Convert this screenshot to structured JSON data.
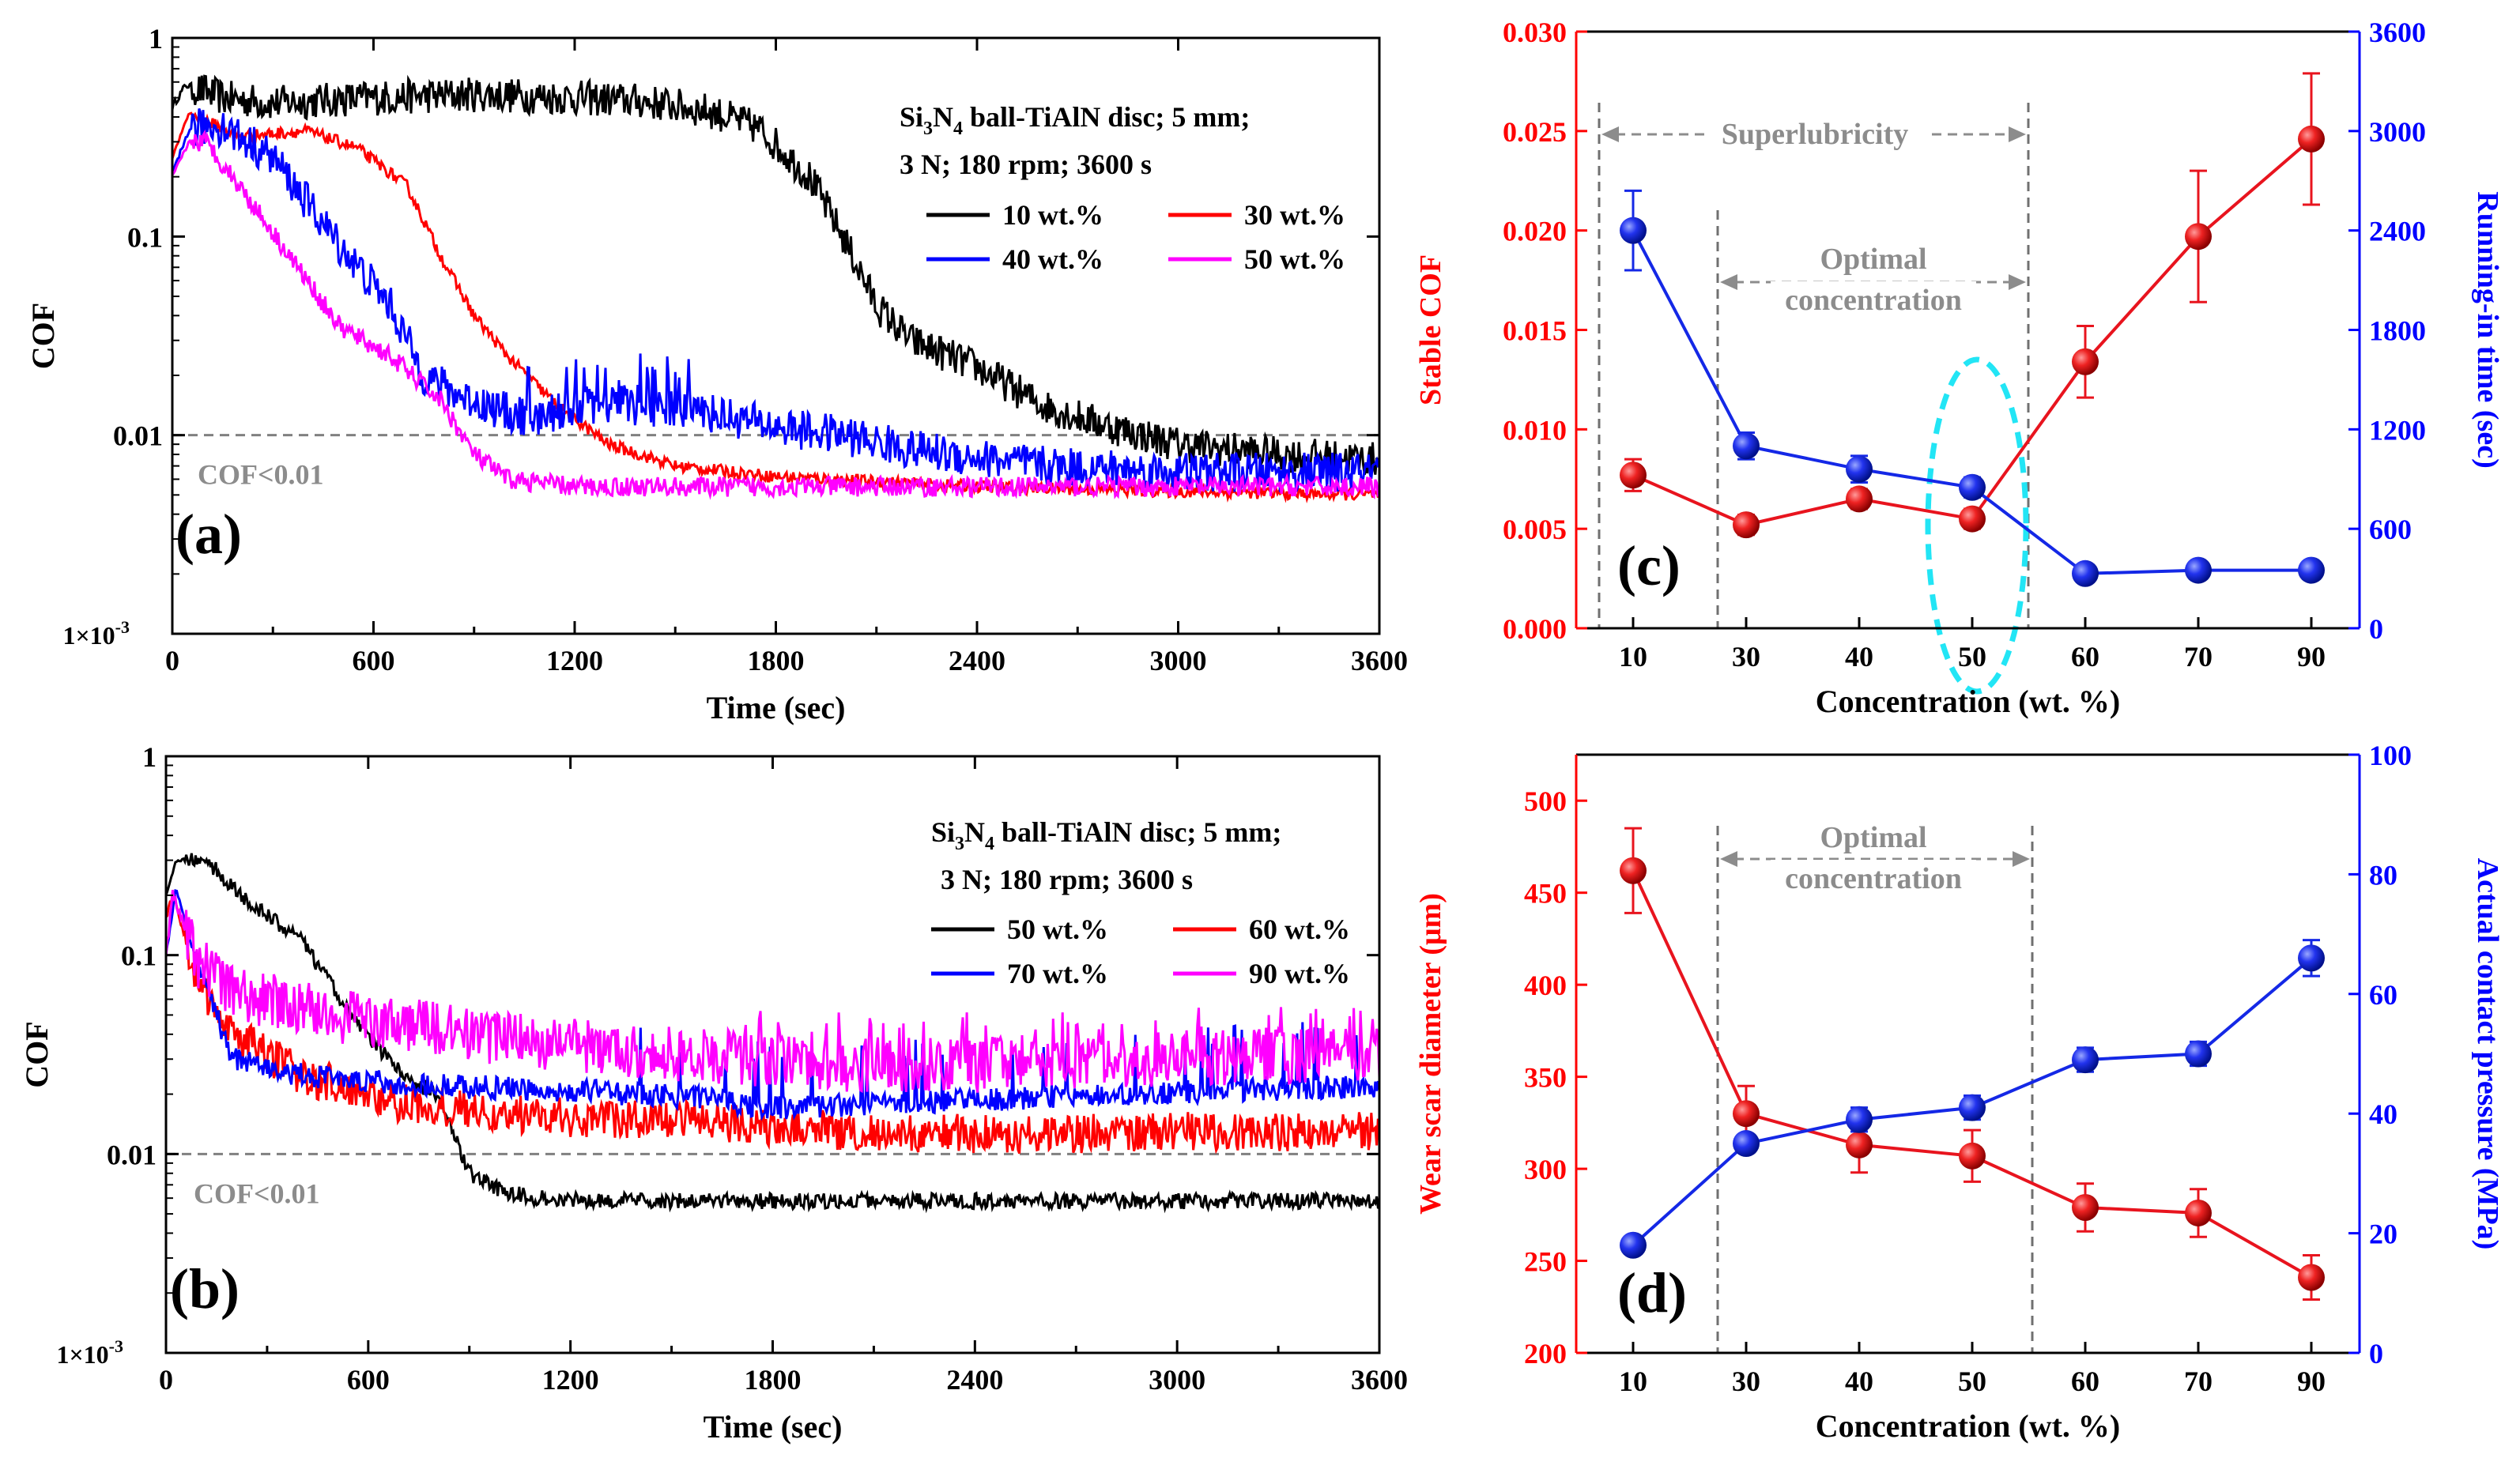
{
  "chart_data": [
    {
      "panel": "a",
      "type": "line",
      "panel_label": "(a)",
      "xlabel": "Time (sec)",
      "ylabel": "COF",
      "xlim": [
        0,
        3600
      ],
      "ylim": [
        0.001,
        1
      ],
      "yscale": "log",
      "xticks": [
        0,
        600,
        1200,
        1800,
        2400,
        3000,
        3600
      ],
      "xtick_labels": [
        "0",
        "600",
        "1200",
        "1800",
        "2400",
        "3000",
        "3600"
      ],
      "yticks": [
        1,
        0.1,
        0.01,
        0.001
      ],
      "ytick_labels": [
        "1",
        "0.1",
        "0.01",
        "1×10-3"
      ],
      "annotation": {
        "line1_pre": "Si",
        "line1_sub1": "3",
        "line1_mid": "N",
        "line1_sub2": "4",
        "line1_post": " ball-TiAlN disc; 5 mm;",
        "line2": "3 N; 180 rpm; 3600 s"
      },
      "threshold": {
        "value": 0.01,
        "label": "COF<0.01"
      },
      "series": [
        {
          "name": "10 wt.%",
          "color": "#000000",
          "noise": 0.18,
          "points": [
            [
              0,
              0.45
            ],
            [
              40,
              0.58
            ],
            [
              150,
              0.5
            ],
            [
              300,
              0.47
            ],
            [
              600,
              0.5
            ],
            [
              900,
              0.52
            ],
            [
              1200,
              0.5
            ],
            [
              1400,
              0.48
            ],
            [
              1600,
              0.43
            ],
            [
              1750,
              0.35
            ],
            [
              1900,
              0.2
            ],
            [
              2000,
              0.1
            ],
            [
              2100,
              0.045
            ],
            [
              2200,
              0.03
            ],
            [
              2400,
              0.022
            ],
            [
              2600,
              0.014
            ],
            [
              2800,
              0.011
            ],
            [
              3000,
              0.009
            ],
            [
              3300,
              0.008
            ],
            [
              3600,
              0.0075
            ]
          ]
        },
        {
          "name": "30 wt.%",
          "color": "#ff0000",
          "noise": 0.06,
          "points": [
            [
              0,
              0.25
            ],
            [
              50,
              0.42
            ],
            [
              200,
              0.32
            ],
            [
              400,
              0.34
            ],
            [
              550,
              0.28
            ],
            [
              700,
              0.18
            ],
            [
              800,
              0.08
            ],
            [
              900,
              0.04
            ],
            [
              1000,
              0.025
            ],
            [
              1150,
              0.014
            ],
            [
              1300,
              0.009
            ],
            [
              1500,
              0.007
            ],
            [
              1800,
              0.0062
            ],
            [
              2400,
              0.0055
            ],
            [
              3000,
              0.0052
            ],
            [
              3600,
              0.005
            ]
          ]
        },
        {
          "name": "40 wt.%",
          "color": "#0000ff",
          "noise": 0.2,
          "points": [
            [
              0,
              0.2
            ],
            [
              50,
              0.35
            ],
            [
              150,
              0.36
            ],
            [
              300,
              0.25
            ],
            [
              500,
              0.09
            ],
            [
              650,
              0.045
            ],
            [
              750,
              0.02
            ],
            [
              850,
              0.016
            ],
            [
              1000,
              0.013
            ],
            [
              1100,
              0.012
            ],
            [
              1200,
              0.014
            ],
            [
              1400,
              0.014
            ],
            [
              1600,
              0.013
            ],
            [
              1800,
              0.011
            ],
            [
              2000,
              0.01
            ],
            [
              2200,
              0.0085
            ],
            [
              2600,
              0.007
            ],
            [
              3000,
              0.0065
            ],
            [
              3600,
              0.0065
            ]
          ]
        },
        {
          "name": "50 wt.%",
          "color": "#ff00ff",
          "noise": 0.1,
          "points": [
            [
              0,
              0.2
            ],
            [
              50,
              0.3
            ],
            [
              100,
              0.3
            ],
            [
              200,
              0.18
            ],
            [
              350,
              0.08
            ],
            [
              500,
              0.035
            ],
            [
              650,
              0.025
            ],
            [
              800,
              0.015
            ],
            [
              900,
              0.008
            ],
            [
              1000,
              0.006
            ],
            [
              1200,
              0.0055
            ],
            [
              3600,
              0.0055
            ]
          ]
        }
      ]
    },
    {
      "panel": "b",
      "type": "line",
      "panel_label": "(b)",
      "xlabel": "Time (sec)",
      "ylabel": "COF",
      "xlim": [
        0,
        3600
      ],
      "ylim": [
        0.001,
        1
      ],
      "yscale": "log",
      "xticks": [
        0,
        600,
        1200,
        1800,
        2400,
        3000,
        3600
      ],
      "xtick_labels": [
        "0",
        "600",
        "1200",
        "1800",
        "2400",
        "3000",
        "3600"
      ],
      "yticks": [
        1,
        0.1,
        0.01,
        0.001
      ],
      "ytick_labels": [
        "1",
        "0.1",
        "0.01",
        "1×10-3"
      ],
      "annotation": {
        "line1_pre": "Si",
        "line1_sub1": "3",
        "line1_mid": "N",
        "line1_sub2": "4",
        "line1_post": " ball-TiAlN disc; 5 mm;",
        "line2": "3 N; 180 rpm; 3600 s"
      },
      "threshold": {
        "value": 0.01,
        "label": "COF<0.01"
      },
      "series": [
        {
          "name": "50 wt.%",
          "color": "#000000",
          "noise": 0.08,
          "points": [
            [
              0,
              0.2
            ],
            [
              30,
              0.3
            ],
            [
              120,
              0.3
            ],
            [
              250,
              0.18
            ],
            [
              400,
              0.12
            ],
            [
              550,
              0.05
            ],
            [
              700,
              0.025
            ],
            [
              800,
              0.02
            ],
            [
              850,
              0.013
            ],
            [
              900,
              0.008
            ],
            [
              1000,
              0.0065
            ],
            [
              1100,
              0.006
            ],
            [
              1400,
              0.0058
            ],
            [
              3600,
              0.0058
            ]
          ]
        },
        {
          "name": "60 wt.%",
          "color": "#ff0000",
          "noise": 0.2,
          "points": [
            [
              0,
              0.15
            ],
            [
              20,
              0.2
            ],
            [
              100,
              0.07
            ],
            [
              200,
              0.04
            ],
            [
              400,
              0.025
            ],
            [
              700,
              0.018
            ],
            [
              1000,
              0.016
            ],
            [
              1300,
              0.015
            ],
            [
              1600,
              0.0145
            ],
            [
              2000,
              0.013
            ],
            [
              2600,
              0.0125
            ],
            [
              3000,
              0.013
            ],
            [
              3600,
              0.013
            ]
          ]
        },
        {
          "name": "70 wt.%",
          "color": "#0000ff",
          "noise": 0.12,
          "points": [
            [
              0,
              0.1
            ],
            [
              30,
              0.22
            ],
            [
              80,
              0.1
            ],
            [
              200,
              0.03
            ],
            [
              400,
              0.025
            ],
            [
              800,
              0.022
            ],
            [
              1200,
              0.021
            ],
            [
              1600,
              0.019
            ],
            [
              1800,
              0.017
            ],
            [
              2200,
              0.018
            ],
            [
              2800,
              0.02
            ],
            [
              3200,
              0.021
            ],
            [
              3600,
              0.022
            ]
          ]
        },
        {
          "name": "90 wt.%",
          "color": "#ff00ff",
          "noise": 0.28,
          "points": [
            [
              0,
              0.1
            ],
            [
              20,
              0.2
            ],
            [
              100,
              0.09
            ],
            [
              200,
              0.065
            ],
            [
              500,
              0.05
            ],
            [
              1000,
              0.038
            ],
            [
              1500,
              0.032
            ],
            [
              2000,
              0.028
            ],
            [
              2500,
              0.028
            ],
            [
              3000,
              0.03
            ],
            [
              3600,
              0.032
            ]
          ]
        }
      ]
    },
    {
      "panel": "c",
      "type": "line",
      "panel_label": "(c)",
      "xlabel": "Concentration (wt. %)",
      "categories": [
        "10",
        "30",
        "40",
        "50",
        "60",
        "70",
        "90"
      ],
      "ylabel_left": "Stable COF",
      "ylabel_right": "Running-in time (sec)",
      "ylim_left": [
        0,
        0.03
      ],
      "ylim_right": [
        0,
        3600
      ],
      "yticks_left": [
        "0.000",
        "0.005",
        "0.010",
        "0.015",
        "0.020",
        "0.025",
        "0.030"
      ],
      "yticks_right": [
        "0",
        "600",
        "1200",
        "1800",
        "2400",
        "3000",
        "3600"
      ],
      "left_color": "#ff0000",
      "right_color": "#0000ff",
      "region1_label": "Superlubricity",
      "region2_label_1": "Optimal",
      "region2_label_2": "concentration",
      "series": [
        {
          "name": "Stable COF",
          "axis": "left",
          "color": "#e8141e",
          "values": [
            0.0077,
            0.0052,
            0.0065,
            0.0055,
            0.0134,
            0.0197,
            0.0246
          ],
          "errors": [
            0.0008,
            0.0005,
            0.0005,
            0.0005,
            0.0018,
            0.0033,
            0.0033
          ]
        },
        {
          "name": "Running-in time",
          "axis": "right",
          "color": "#1428e6",
          "values": [
            2400,
            1100,
            960,
            850,
            330,
            350,
            350
          ],
          "errors": [
            240,
            80,
            80,
            60,
            20,
            20,
            20
          ]
        }
      ]
    },
    {
      "panel": "d",
      "type": "line",
      "panel_label": "(d)",
      "xlabel": "Concentration (wt. %)",
      "categories": [
        "10",
        "30",
        "40",
        "50",
        "60",
        "70",
        "90"
      ],
      "ylabel_left": "Wear scar diameter (μm)",
      "ylabel_right": "Actual contact pressure (MPa)",
      "ylim_left": [
        200,
        525
      ],
      "ylim_right": [
        0,
        100
      ],
      "yticks_left": [
        "200",
        "250",
        "300",
        "350",
        "400",
        "450",
        "500"
      ],
      "yticks_right": [
        "0",
        "20",
        "40",
        "60",
        "80",
        "100"
      ],
      "left_color": "#ff0000",
      "right_color": "#0000ff",
      "region2_label_1": "Optimal",
      "region2_label_2": "concentration",
      "series": [
        {
          "name": "Wear scar diameter",
          "axis": "left",
          "color": "#e8141e",
          "values": [
            462,
            330,
            313,
            307,
            279,
            276,
            241
          ],
          "errors": [
            23,
            15,
            15,
            14,
            13,
            13,
            12
          ]
        },
        {
          "name": "Actual contact pressure",
          "axis": "right",
          "color": "#1428e6",
          "values": [
            18,
            35,
            39,
            41,
            49,
            50,
            66
          ],
          "errors": [
            1,
            1.5,
            2,
            2,
            2,
            2,
            3
          ]
        }
      ]
    }
  ]
}
